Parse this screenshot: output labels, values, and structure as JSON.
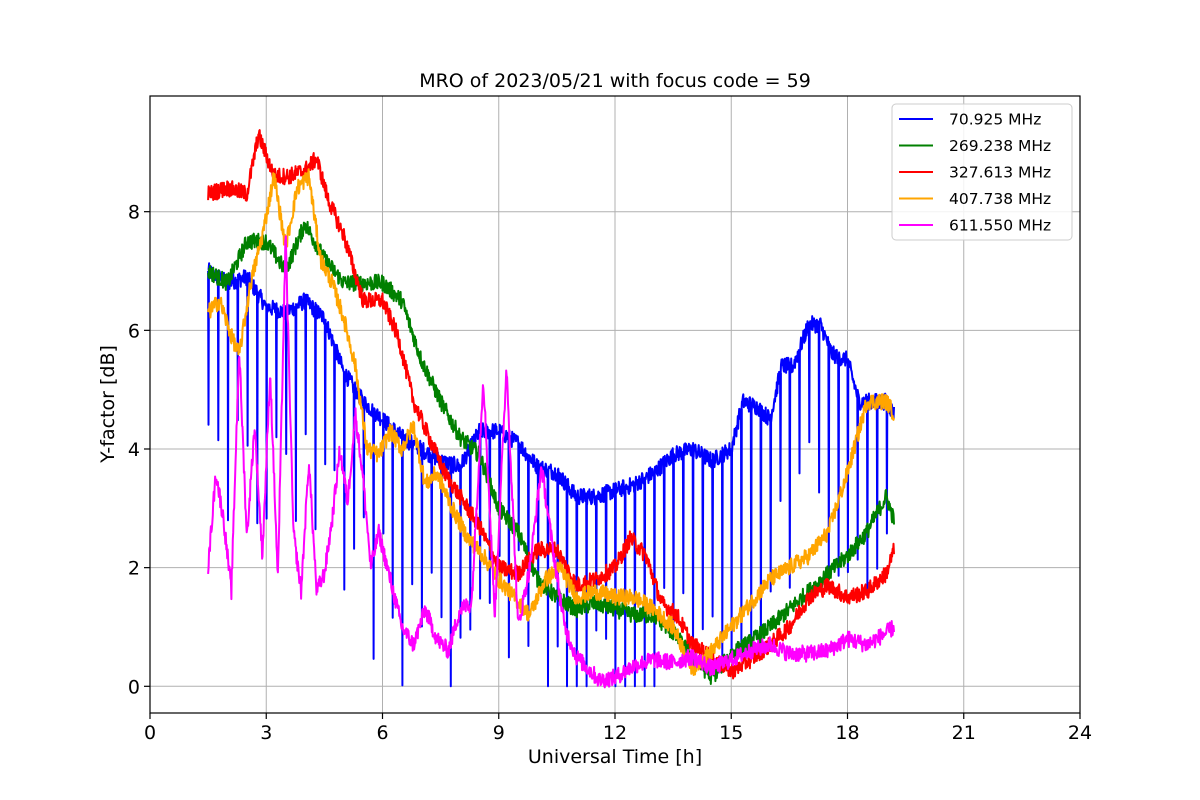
{
  "chart_data": {
    "type": "line",
    "title": "MRO of 2023/05/21 with focus code = 59",
    "xlabel": "Universal Time [h]",
    "ylabel": "Y-factor [dB]",
    "xlim": [
      0,
      24
    ],
    "ylim": [
      -0.45,
      9.95
    ],
    "xticks": [
      0,
      3,
      6,
      9,
      12,
      15,
      18,
      21,
      24
    ],
    "yticks": [
      0,
      2,
      4,
      6,
      8
    ],
    "grid": true,
    "legend_position": "top-right",
    "series": [
      {
        "name": " 70.925 MHz",
        "color": "#0000ff",
        "x": [
          1.5,
          2.0,
          2.5,
          3.0,
          3.5,
          4.0,
          4.5,
          5.0,
          5.5,
          6.0,
          6.5,
          7.0,
          7.5,
          8.0,
          8.5,
          9.0,
          9.5,
          10.0,
          10.5,
          11.0,
          11.5,
          12.0,
          12.5,
          13.0,
          13.5,
          14.0,
          14.5,
          15.0,
          15.3,
          15.7,
          16.0,
          16.3,
          16.6,
          17.0,
          17.3,
          17.6,
          18.0,
          18.3,
          18.6,
          19.0,
          19.2
        ],
        "y": [
          7.0,
          6.8,
          6.9,
          6.4,
          6.3,
          6.5,
          6.2,
          5.3,
          4.8,
          4.5,
          4.2,
          4.0,
          3.8,
          3.7,
          4.3,
          4.3,
          4.1,
          3.7,
          3.6,
          3.2,
          3.2,
          3.3,
          3.4,
          3.6,
          3.9,
          4.0,
          3.8,
          4.0,
          4.8,
          4.7,
          4.5,
          5.4,
          5.4,
          6.1,
          6.1,
          5.6,
          5.5,
          4.8,
          4.8,
          4.8,
          4.6
        ],
        "dip_to": 0.0
      },
      {
        "name": "269.238 MHz",
        "color": "#008000",
        "x": [
          1.5,
          2.0,
          2.5,
          3.0,
          3.5,
          4.0,
          4.5,
          5.0,
          5.5,
          6.0,
          6.5,
          7.0,
          7.5,
          8.0,
          8.5,
          9.0,
          9.5,
          10.0,
          10.5,
          11.0,
          11.5,
          12.0,
          12.5,
          13.0,
          13.5,
          14.0,
          14.5,
          15.0,
          15.5,
          16.0,
          16.5,
          17.0,
          17.5,
          18.0,
          18.5,
          19.0,
          19.2
        ],
        "y": [
          7.0,
          6.8,
          7.5,
          7.5,
          7.0,
          7.8,
          7.2,
          6.8,
          6.8,
          6.8,
          6.5,
          5.5,
          4.8,
          4.2,
          3.9,
          3.0,
          2.6,
          1.8,
          1.5,
          1.3,
          1.4,
          1.3,
          1.2,
          1.2,
          0.9,
          0.5,
          0.15,
          0.55,
          0.75,
          1.0,
          1.3,
          1.6,
          1.9,
          2.2,
          2.6,
          3.2,
          2.8
        ]
      },
      {
        "name": "327.613 MHz",
        "color": "#ff0000",
        "x": [
          1.5,
          2.0,
          2.5,
          2.8,
          3.2,
          3.6,
          4.0,
          4.3,
          4.6,
          5.0,
          5.5,
          6.0,
          6.4,
          6.8,
          7.2,
          7.6,
          8.0,
          8.5,
          9.0,
          9.5,
          10.0,
          10.5,
          11.0,
          11.5,
          12.0,
          12.4,
          12.8,
          13.2,
          13.6,
          14.0,
          14.5,
          15.0,
          15.5,
          16.0,
          16.5,
          17.0,
          17.5,
          18.0,
          18.5,
          19.0,
          19.2
        ],
        "y": [
          8.3,
          8.4,
          8.3,
          9.3,
          8.6,
          8.6,
          8.7,
          8.9,
          8.2,
          7.6,
          6.5,
          6.5,
          5.9,
          4.8,
          4.2,
          3.6,
          3.2,
          2.7,
          2.0,
          1.9,
          2.3,
          2.3,
          1.7,
          1.8,
          2.0,
          2.5,
          2.2,
          1.4,
          1.2,
          0.7,
          0.5,
          0.25,
          0.45,
          0.7,
          1.0,
          1.5,
          1.7,
          1.5,
          1.6,
          1.9,
          2.3
        ]
      },
      {
        "name": "407.738 MHz",
        "color": "#ffa500",
        "x": [
          1.5,
          1.8,
          2.1,
          2.3,
          2.6,
          2.9,
          3.2,
          3.5,
          3.8,
          4.1,
          4.4,
          4.7,
          5.0,
          5.3,
          5.6,
          5.9,
          6.2,
          6.5,
          6.8,
          7.1,
          7.4,
          7.8,
          8.2,
          8.6,
          9.0,
          9.4,
          9.8,
          10.2,
          10.6,
          11.0,
          11.5,
          12.0,
          12.5,
          13.0,
          13.5,
          14.0,
          14.5,
          15.0,
          15.5,
          16.0,
          16.5,
          17.0,
          17.5,
          18.0,
          18.5,
          19.0,
          19.2
        ],
        "y": [
          6.3,
          6.5,
          5.9,
          5.6,
          6.8,
          7.6,
          8.6,
          7.4,
          8.4,
          8.6,
          7.2,
          6.8,
          6.2,
          5.4,
          4.0,
          3.9,
          4.3,
          4.0,
          4.4,
          3.4,
          3.6,
          3.0,
          2.5,
          2.2,
          1.8,
          1.5,
          1.2,
          1.8,
          2.0,
          1.5,
          1.6,
          1.5,
          1.5,
          1.3,
          1.0,
          0.3,
          0.6,
          1.0,
          1.4,
          1.8,
          2.0,
          2.2,
          2.6,
          3.6,
          4.8,
          4.8,
          4.6
        ]
      },
      {
        "name": "611.550 MHz",
        "color": "#ff00ff",
        "x": [
          1.5,
          1.7,
          1.9,
          2.1,
          2.3,
          2.5,
          2.7,
          2.9,
          3.1,
          3.3,
          3.5,
          3.7,
          3.9,
          4.1,
          4.3,
          4.5,
          4.7,
          4.9,
          5.1,
          5.3,
          5.5,
          5.7,
          5.9,
          6.2,
          6.5,
          6.8,
          7.1,
          7.4,
          7.7,
          8.0,
          8.3,
          8.6,
          8.9,
          9.2,
          9.5,
          9.8,
          10.1,
          10.4,
          10.7,
          11.0,
          11.3,
          11.6,
          12.0,
          12.5,
          13.0,
          13.5,
          14.0,
          14.5,
          15.0,
          15.5,
          16.0,
          16.5,
          17.0,
          17.5,
          18.0,
          18.5,
          19.0,
          19.2
        ],
        "y": [
          2.0,
          3.6,
          2.8,
          1.6,
          5.7,
          2.5,
          4.4,
          2.2,
          5.3,
          1.8,
          7.6,
          2.6,
          1.6,
          3.8,
          1.6,
          1.9,
          2.8,
          4.0,
          3.1,
          4.6,
          3.5,
          2.0,
          2.6,
          1.8,
          1.0,
          0.7,
          1.3,
          0.8,
          0.6,
          1.3,
          1.4,
          5.2,
          1.2,
          5.4,
          1.0,
          2.0,
          3.7,
          2.3,
          1.0,
          0.5,
          0.3,
          0.1,
          0.15,
          0.35,
          0.45,
          0.4,
          0.5,
          0.3,
          0.45,
          0.6,
          0.7,
          0.55,
          0.55,
          0.6,
          0.8,
          0.7,
          0.9,
          1.0
        ]
      }
    ]
  }
}
